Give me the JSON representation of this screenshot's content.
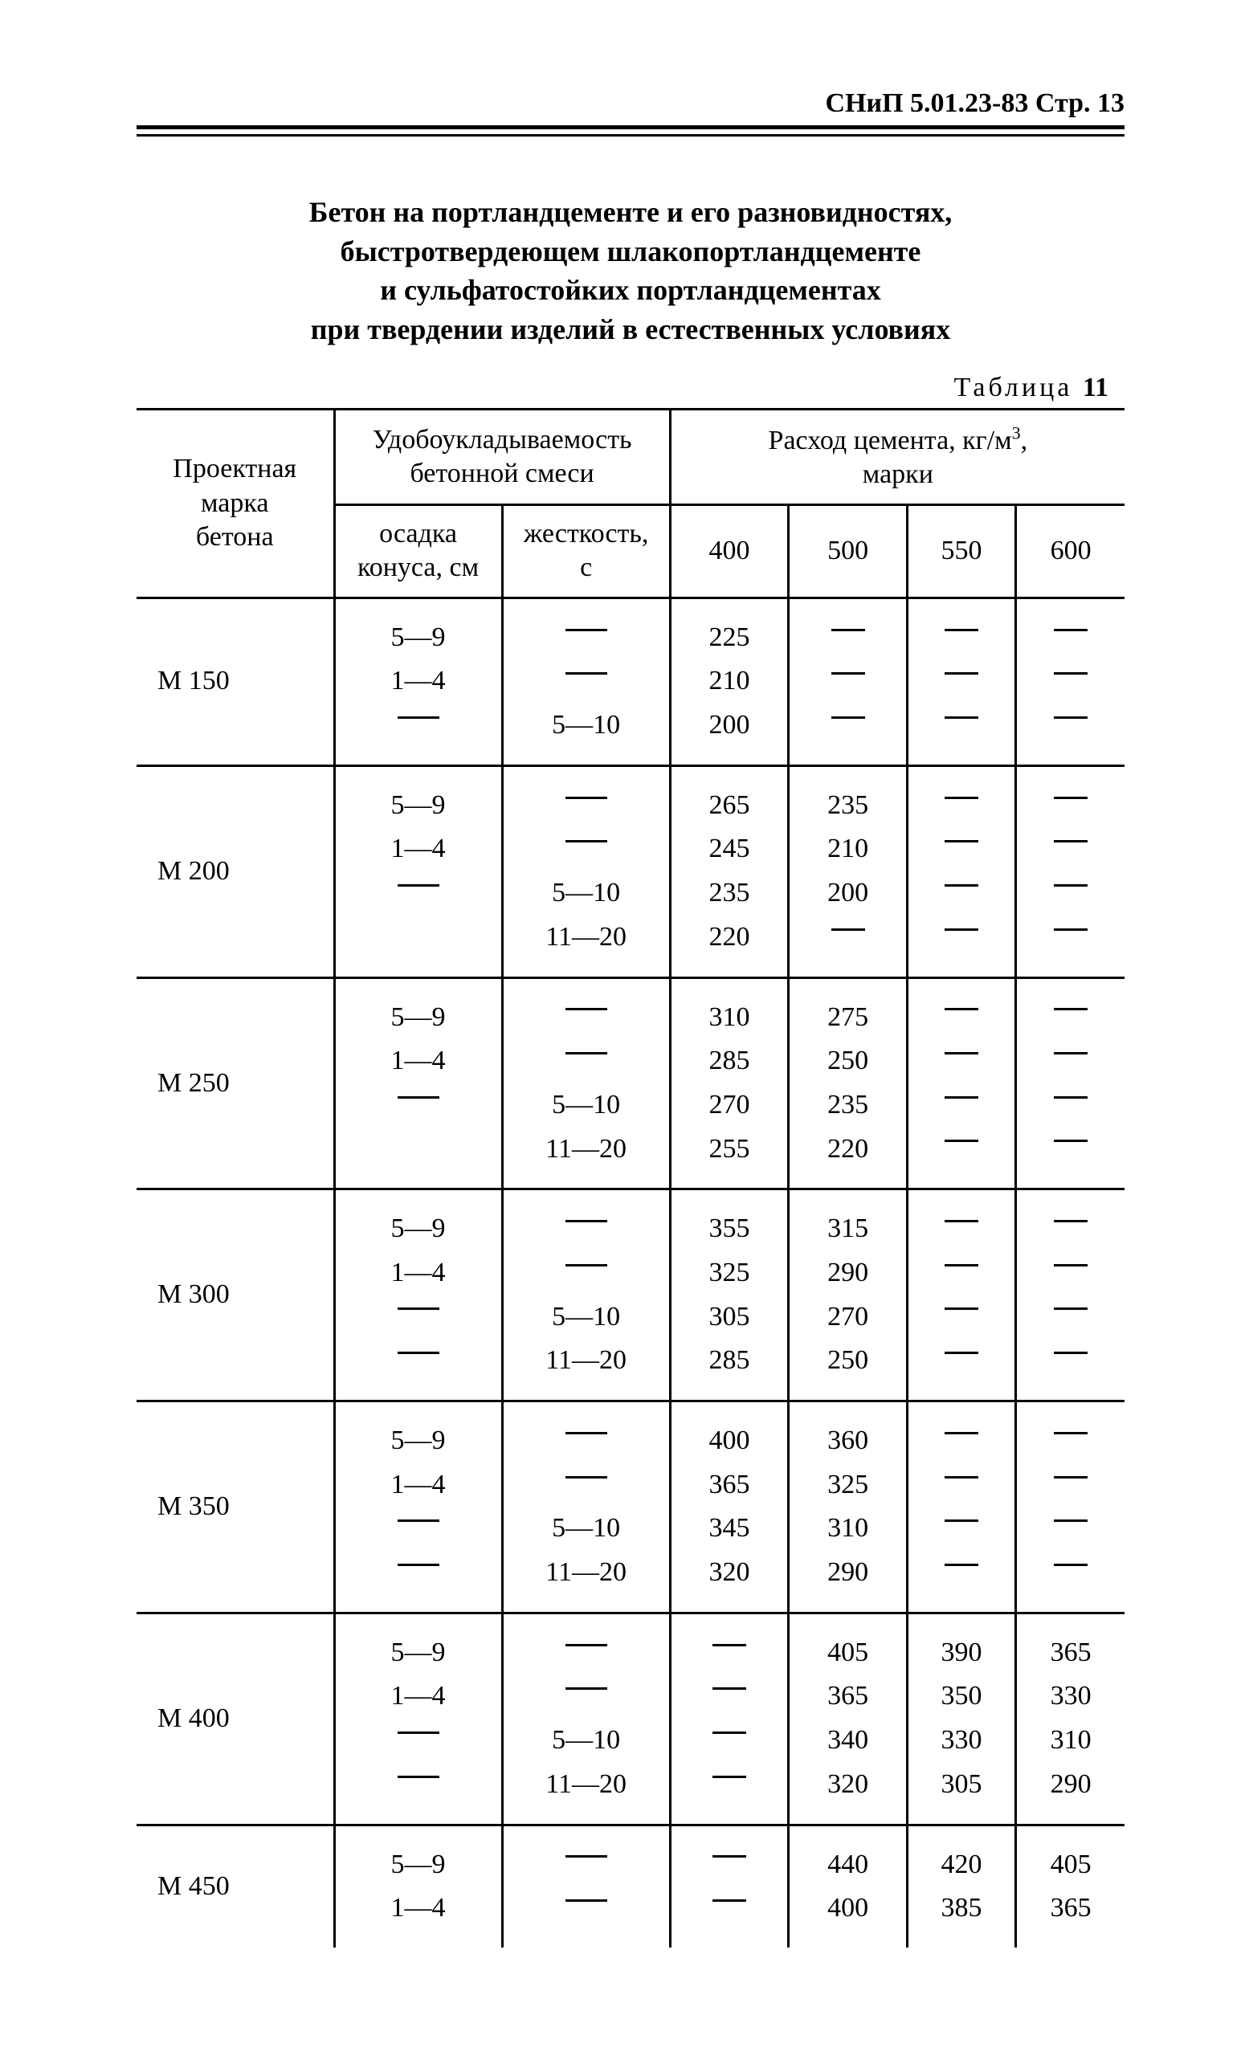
{
  "page": {
    "running_head": "СНиП 5.01.23-83 Стр. 13",
    "section_title_lines": [
      "Бетон на портландцементе и его разновидностях,",
      "быстротвердеющем шлакопортландцементе",
      "и сульфатостойких портландцементах",
      "при твердении изделий в естественных условиях"
    ],
    "table_label_word": "Таблица",
    "table_number": "11"
  },
  "headers": {
    "col_mark_line1": "Проектная",
    "col_mark_line2": "марка",
    "col_mark_line3": "бетона",
    "group_workability_line1": "Удобоукладываемость",
    "group_workability_line2": "бетонной смеси",
    "sub_slump_line1": "осадка",
    "sub_slump_line2": "конуса, см",
    "sub_stiff_line1": "жесткость,",
    "sub_stiff_line2": "с",
    "group_cement_line1_pre": "Расход цемента, кг/м",
    "group_cement_line1_sup": "3",
    "group_cement_line1_post": ",",
    "group_cement_line2": "марки",
    "cem_400": "400",
    "cem_500": "500",
    "cem_550": "550",
    "cem_600": "600"
  },
  "dash": "—",
  "rows": [
    {
      "mark": "М 150",
      "slump": [
        "5—9",
        "1—4",
        "—"
      ],
      "stiff": [
        "—",
        "—",
        "5—10"
      ],
      "c400": [
        "225",
        "210",
        "200"
      ],
      "c500": [
        "—",
        "—",
        "—"
      ],
      "c550": [
        "—",
        "—",
        "—"
      ],
      "c600": [
        "—",
        "—",
        "—"
      ]
    },
    {
      "mark": "М 200",
      "slump": [
        "5—9",
        "1—4",
        "—",
        ""
      ],
      "stiff": [
        "—",
        "—",
        "5—10",
        "11—20"
      ],
      "c400": [
        "265",
        "245",
        "235",
        "220"
      ],
      "c500": [
        "235",
        "210",
        "200",
        "—"
      ],
      "c550": [
        "—",
        "—",
        "—",
        "—"
      ],
      "c600": [
        "—",
        "—",
        "—",
        "—"
      ]
    },
    {
      "mark": "М 250",
      "slump": [
        "5—9",
        "1—4",
        "—",
        ""
      ],
      "stiff": [
        "—",
        "—",
        "5—10",
        "11—20"
      ],
      "c400": [
        "310",
        "285",
        "270",
        "255"
      ],
      "c500": [
        "275",
        "250",
        "235",
        "220"
      ],
      "c550": [
        "—",
        "—",
        "—",
        "—"
      ],
      "c600": [
        "—",
        "—",
        "—",
        "—"
      ]
    },
    {
      "mark": "М 300",
      "slump": [
        "5—9",
        "1—4",
        "—",
        "—"
      ],
      "stiff": [
        "—",
        "—",
        "5—10",
        "11—20"
      ],
      "c400": [
        "355",
        "325",
        "305",
        "285"
      ],
      "c500": [
        "315",
        "290",
        "270",
        "250"
      ],
      "c550": [
        "—",
        "—",
        "—",
        "—"
      ],
      "c600": [
        "—",
        "—",
        "—",
        "—"
      ]
    },
    {
      "mark": "М 350",
      "slump": [
        "5—9",
        "1—4",
        "—",
        "—"
      ],
      "stiff": [
        "—",
        "—",
        "5—10",
        "11—20"
      ],
      "c400": [
        "400",
        "365",
        "345",
        "320"
      ],
      "c500": [
        "360",
        "325",
        "310",
        "290"
      ],
      "c550": [
        "—",
        "—",
        "—",
        "—"
      ],
      "c600": [
        "—",
        "—",
        "—",
        "—"
      ]
    },
    {
      "mark": "М 400",
      "slump": [
        "5—9",
        "1—4",
        "—",
        "—"
      ],
      "stiff": [
        "—",
        "—",
        "5—10",
        "11—20"
      ],
      "c400": [
        "—",
        "—",
        "—",
        "—"
      ],
      "c500": [
        "405",
        "365",
        "340",
        "320"
      ],
      "c550": [
        "390",
        "350",
        "330",
        "305"
      ],
      "c600": [
        "365",
        "330",
        "310",
        "290"
      ]
    },
    {
      "mark": "М 450",
      "slump": [
        "5—9",
        "1—4"
      ],
      "stiff": [
        "—",
        "—"
      ],
      "c400": [
        "—",
        "—"
      ],
      "c500": [
        "440",
        "400"
      ],
      "c550": [
        "420",
        "385"
      ],
      "c600": [
        "405",
        "365"
      ],
      "last": true
    }
  ]
}
